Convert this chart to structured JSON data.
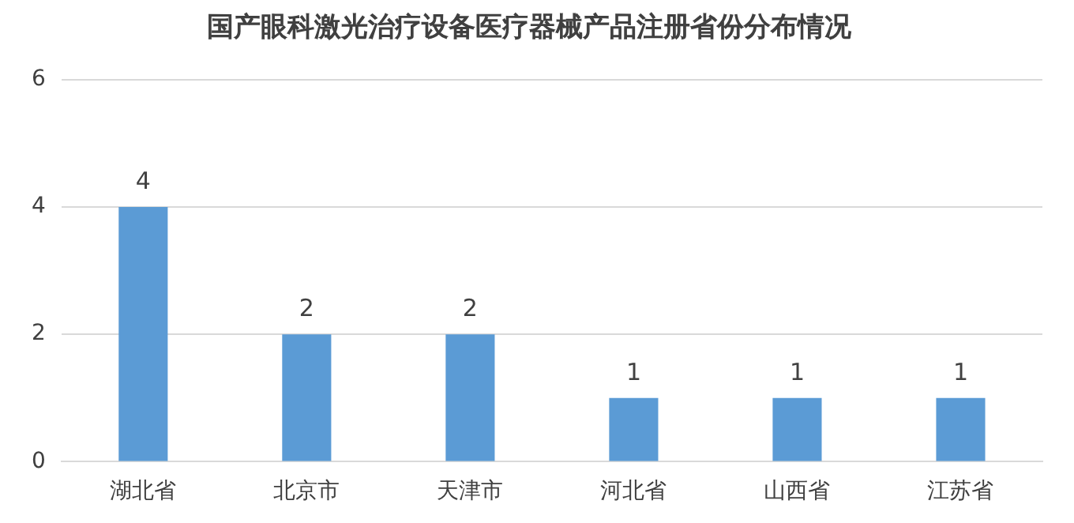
{
  "chart_data": {
    "type": "bar",
    "title": "国产眼科激光治疗设备医疗器械产品注册省份分布情况",
    "categories": [
      "湖北省",
      "北京市",
      "天津市",
      "河北省",
      "山西省",
      "江苏省"
    ],
    "values": [
      4,
      2,
      2,
      1,
      1,
      1
    ],
    "color": "#5b9bd5",
    "ylim": [
      0,
      6
    ],
    "yticks": [
      0,
      2,
      4,
      6
    ],
    "grid": "y",
    "data_labels": true,
    "legend": false
  }
}
